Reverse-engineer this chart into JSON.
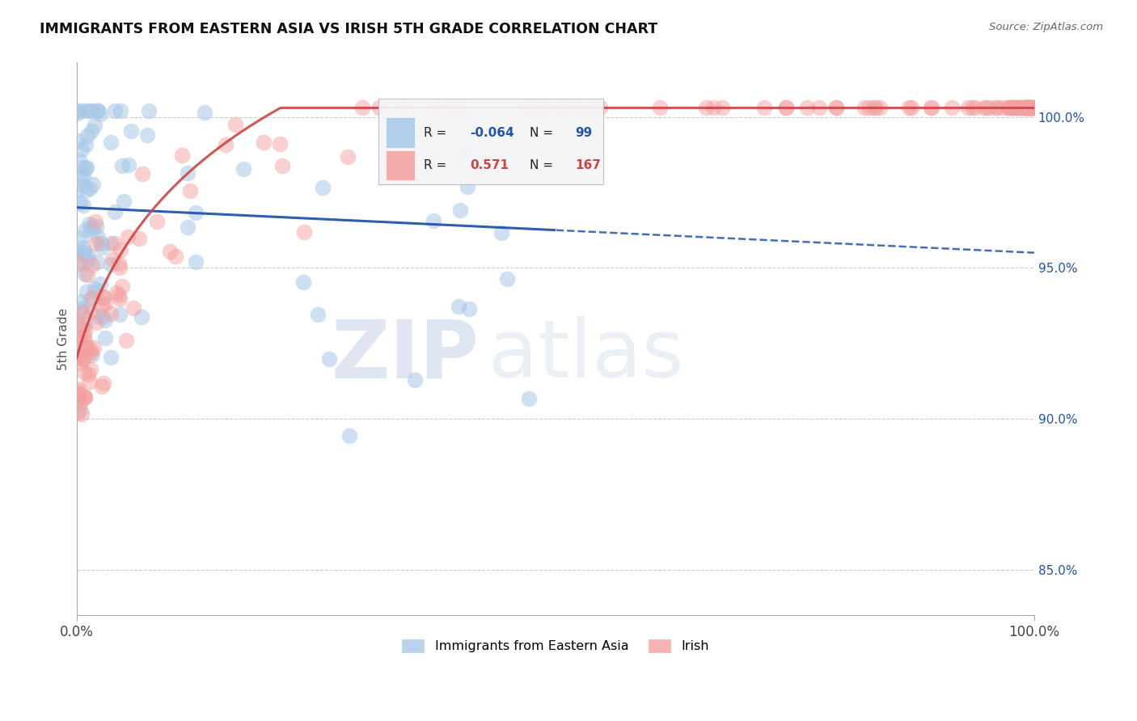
{
  "title": "IMMIGRANTS FROM EASTERN ASIA VS IRISH 5TH GRADE CORRELATION CHART",
  "source": "Source: ZipAtlas.com",
  "ylabel": "5th Grade",
  "right_ytick_vals": [
    85.0,
    90.0,
    95.0,
    100.0
  ],
  "right_ytick_labels": [
    "85.0%",
    "90.0%",
    "95.0%",
    "100.0%"
  ],
  "legend_entries": [
    "Immigrants from Eastern Asia",
    "Irish"
  ],
  "blue_R": -0.064,
  "blue_N": 99,
  "pink_R": 0.571,
  "pink_N": 167,
  "blue_color": "#a8c8e8",
  "pink_color": "#f4a0a0",
  "blue_line_color": "#2255aa",
  "pink_line_color": "#cc4444",
  "background_color": "#ffffff",
  "watermark_zip": "ZIP",
  "watermark_atlas": "atlas",
  "ymin": 83.5,
  "ymax": 101.8,
  "xmin": 0.0,
  "xmax": 100.0
}
